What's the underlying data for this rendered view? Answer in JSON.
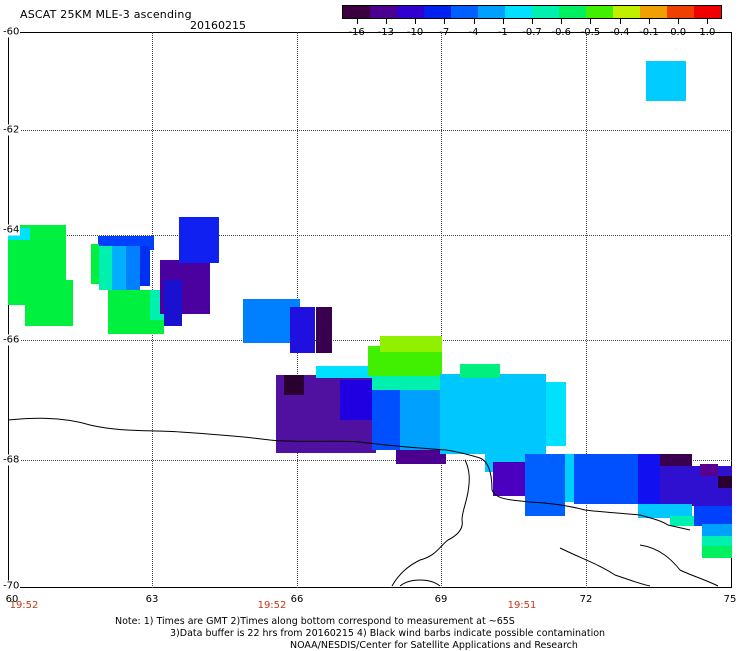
{
  "header": {
    "title": "ASCAT 25KM MLE-3 ascending",
    "date": "20160215"
  },
  "colorbar": {
    "labels": [
      "-16",
      "-13",
      "-10",
      "-7",
      "-4",
      "-1",
      "-0.7",
      "-0.6",
      "-0.5",
      "-0.4",
      "-0.1",
      "0.0",
      "1.0"
    ],
    "colors": [
      "#3a0040",
      "#4b0090",
      "#3000d0",
      "#0020f0",
      "#0060ff",
      "#00a0ff",
      "#00e0ff",
      "#00f0b0",
      "#00f060",
      "#40f000",
      "#c0f000",
      "#f0a000",
      "#f04000",
      "#f00000"
    ]
  },
  "axes": {
    "y_labels": [
      "-60",
      "-62",
      "-64",
      "-66",
      "-68",
      "-70"
    ],
    "x_labels": [
      "60",
      "63",
      "66",
      "69",
      "72",
      "75"
    ],
    "time_labels": [
      "19:52",
      "19:52",
      "19:51"
    ]
  },
  "notes": {
    "line1": "Note: 1) Times are GMT 2)Times along bottom correspond to measurement at ~65S",
    "line2": "3)Data buffer is 22 hrs from 20160215 4) Black wind barbs indicate possible contamination",
    "line3": "NOAA/NESDIS/Center for Satellite Applications and Research"
  }
}
